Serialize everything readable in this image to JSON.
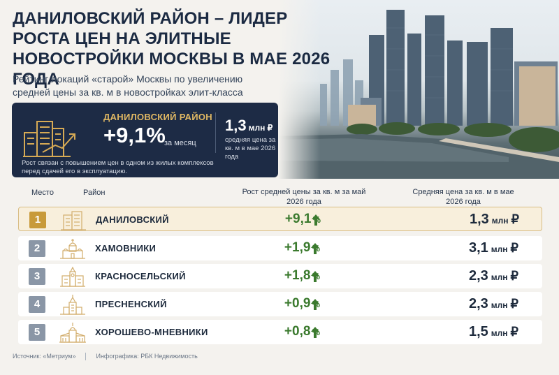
{
  "header": {
    "title": "ДАНИЛОВСКИЙ РАЙОН – ЛИДЕР РОСТА ЦЕН НА ЭЛИТНЫЕ НОВОСТРОЙКИ МОСКВЫ В МАЕ 2026 ГОДА",
    "subtitle": "Рейтинг локаций «старой» Москвы по увеличению средней цены за кв. м в новостройках элит-класса"
  },
  "highlight": {
    "district": "ДАНИЛОВСКИЙ РАЙОН",
    "growth": "+9,1%",
    "period": "за месяц",
    "price": "1,3",
    "price_unit": "млн ₽",
    "price_note": "средняя цена за кв. м в мае 2026 года",
    "note": "Рост связан с повышением цен в одном из жилых комплексов перед сдачей его в эксплуатацию.",
    "icon": "buildings-growth-icon"
  },
  "table": {
    "headers": {
      "place": "Место",
      "district": "Район",
      "growth": "Рост средней цены за кв. м за май 2026 года",
      "price": "Средняя цена за кв. м в мае 2026 года"
    },
    "rows": [
      {
        "rank": "1",
        "name": "ДАНИЛОВСКИЙ",
        "growth": "+9,1",
        "pct": "%",
        "price": "1,3",
        "unit": "млн",
        "currency": "₽",
        "icon": "residential-building-icon"
      },
      {
        "rank": "2",
        "name": "ХАМОВНИКИ",
        "growth": "+1,9",
        "pct": "%",
        "price": "3,1",
        "unit": "млн",
        "currency": "₽",
        "icon": "church-icon"
      },
      {
        "rank": "3",
        "name": "КРАСНОСЕЛЬСКИЙ",
        "growth": "+1,8",
        "pct": "%",
        "price": "2,3",
        "unit": "млн",
        "currency": "₽",
        "icon": "station-building-icon"
      },
      {
        "rank": "4",
        "name": "ПРЕСНЕНСКИЙ",
        "growth": "+0,9",
        "pct": "%",
        "price": "2,3",
        "unit": "млн",
        "currency": "₽",
        "icon": "highrise-tower-icon"
      },
      {
        "rank": "5",
        "name": "ХОРОШЕВО-МНЕВНИКИ",
        "growth": "+0,8",
        "pct": "%",
        "price": "1,5",
        "unit": "млн",
        "currency": "₽",
        "icon": "palace-icon"
      }
    ]
  },
  "footer": {
    "source": "Источник: «Метриум»",
    "credit": "Инфографика: РБК Недвижимость"
  },
  "colors": {
    "navy": "#1d2b45",
    "gold": "#c89a3a",
    "green": "#3b7a2e",
    "rank_gray": "#8a96a6"
  }
}
